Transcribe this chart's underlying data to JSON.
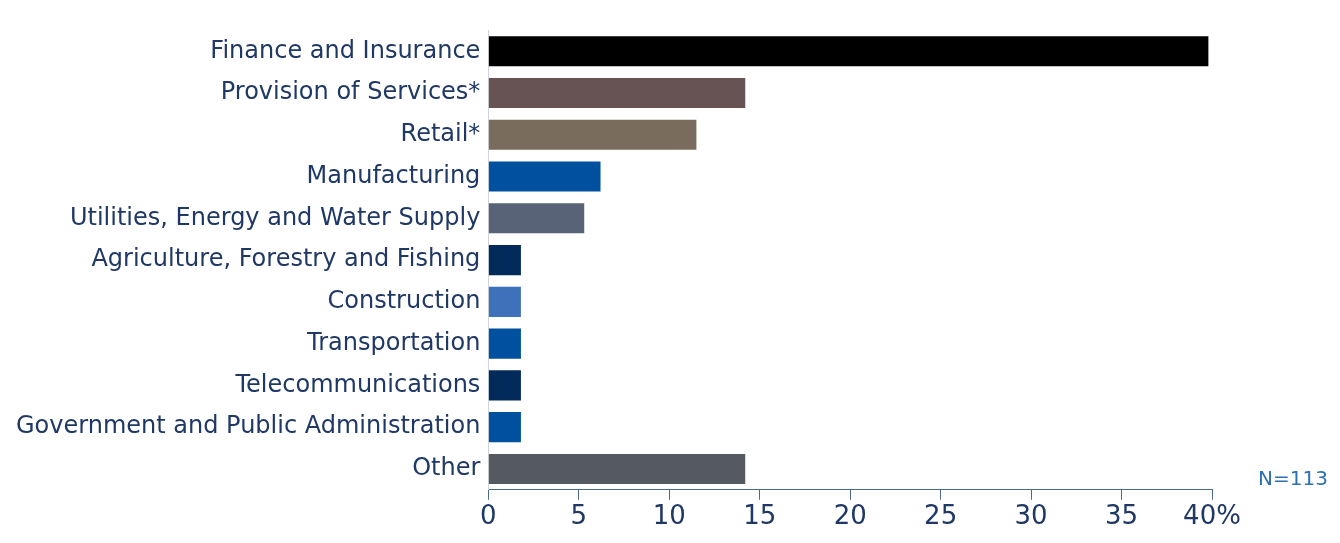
{
  "chart_data": {
    "type": "bar",
    "orientation": "horizontal",
    "categories": [
      "Finance and Insurance",
      "Provision of Services*",
      "Retail*",
      "Manufacturing",
      "Utilities, Energy and Water Supply",
      "Agriculture, Forestry and Fishing",
      "Construction",
      "Transportation",
      "Telecommunications",
      "Government and Public Administration",
      "Other"
    ],
    "values": [
      39.8,
      14.2,
      11.5,
      6.2,
      5.3,
      1.8,
      1.8,
      1.8,
      1.8,
      1.8,
      14.2
    ],
    "colors": [
      "#000000",
      "#675353",
      "#7a6c5c",
      "#0050a0",
      "#596378",
      "#022a5a",
      "#3d72bb",
      "#0050a0",
      "#022a5a",
      "#0050a0",
      "#545a60"
    ],
    "xlim": [
      0,
      40
    ],
    "xticks": [
      0,
      5,
      10,
      15,
      20,
      25,
      30,
      35,
      {
        "value": 40,
        "label": "40%"
      }
    ],
    "grid": false,
    "legend": false,
    "annotations": [
      "N=113"
    ]
  }
}
